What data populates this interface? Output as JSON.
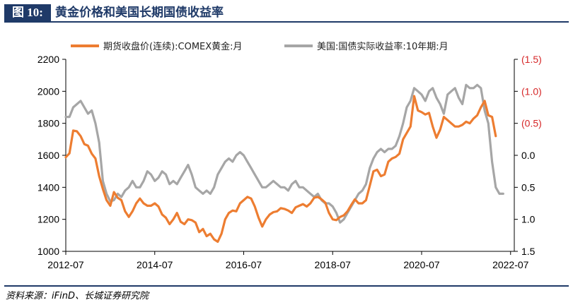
{
  "header": {
    "figure_label": "图 10:",
    "title": "黄金价格和美国长期国债收益率"
  },
  "source_note": "资料来源：iFinD、长城证券研究院",
  "chart_data": {
    "type": "line",
    "title": "",
    "xlabel": "",
    "ylabel_left": "",
    "ylabel_right": "",
    "x_start": "2012-07",
    "x_end": "2022-08",
    "x_tick_labels": [
      "2012-07",
      "2014-07",
      "2016-07",
      "2018-07",
      "2020-07",
      "2022-07"
    ],
    "x_tick_dates": [
      "2012-07",
      "2014-07",
      "2016-07",
      "2018-07",
      "2020-07",
      "2022-07"
    ],
    "y_left": {
      "min": 1000,
      "max": 2200,
      "ticks": [
        1000,
        1200,
        1400,
        1600,
        1800,
        2000,
        2200
      ]
    },
    "y_right": {
      "min": -1.5,
      "max": 1.5,
      "inverted": true,
      "ticks": [
        -1.5,
        -1.0,
        -0.5,
        0.0,
        0.5,
        1.0,
        1.5
      ],
      "tick_labels": [
        "(1.5)",
        "(1.0)",
        "(0.5)",
        "0.0",
        "0.5",
        "1.0",
        "1.5"
      ],
      "negative_label_color": "#d62728"
    },
    "legend_position": "top",
    "grid": false,
    "series": [
      {
        "name": "期货收盘价(连续):COMEX黄金:月",
        "axis": "left",
        "color": "#ed7d31",
        "start": "2012-07",
        "values": [
          1588,
          1613,
          1755,
          1750,
          1720,
          1670,
          1660,
          1610,
          1580,
          1470,
          1390,
          1320,
          1285,
          1370,
          1335,
          1320,
          1250,
          1215,
          1250,
          1300,
          1330,
          1300,
          1285,
          1285,
          1300,
          1280,
          1230,
          1210,
          1170,
          1200,
          1240,
          1185,
          1170,
          1200,
          1195,
          1180,
          1120,
          1140,
          1095,
          1110,
          1075,
          1060,
          1110,
          1200,
          1240,
          1255,
          1250,
          1300,
          1320,
          1340,
          1330,
          1280,
          1210,
          1155,
          1200,
          1230,
          1245,
          1250,
          1270,
          1265,
          1255,
          1240,
          1275,
          1285,
          1295,
          1280,
          1300,
          1335,
          1340,
          1325,
          1305,
          1240,
          1200,
          1195,
          1215,
          1225,
          1250,
          1290,
          1325,
          1300,
          1300,
          1320,
          1410,
          1500,
          1510,
          1470,
          1480,
          1560,
          1580,
          1590,
          1610,
          1700,
          1740,
          1780,
          1970,
          1880,
          1870,
          1855,
          1865,
          1780,
          1710,
          1760,
          1840,
          1820,
          1800,
          1780,
          1780,
          1790,
          1810,
          1800,
          1830,
          1850,
          1900,
          1940,
          1850,
          1840,
          1720
        ]
      },
      {
        "name": "美国:国债实际收益率:10年期:月",
        "axis": "right",
        "color": "#a6a6a6",
        "start": "2012-07",
        "values": [
          -0.6,
          -0.6,
          -0.75,
          -0.8,
          -0.85,
          -0.75,
          -0.65,
          -0.7,
          -0.5,
          -0.2,
          0.4,
          0.6,
          0.72,
          0.7,
          0.6,
          0.65,
          0.55,
          0.5,
          0.4,
          0.5,
          0.5,
          0.4,
          0.25,
          0.3,
          0.4,
          0.35,
          0.25,
          0.3,
          0.45,
          0.4,
          0.45,
          0.35,
          0.25,
          0.15,
          0.3,
          0.5,
          0.55,
          0.6,
          0.55,
          0.6,
          0.5,
          0.3,
          0.2,
          0.1,
          0.05,
          0.1,
          0.0,
          -0.05,
          0.0,
          0.1,
          0.2,
          0.3,
          0.4,
          0.5,
          0.5,
          0.45,
          0.4,
          0.45,
          0.5,
          0.5,
          0.55,
          0.45,
          0.4,
          0.5,
          0.5,
          0.55,
          0.6,
          0.65,
          0.6,
          0.7,
          0.75,
          0.75,
          0.8,
          0.9,
          1.05,
          1.0,
          0.9,
          0.8,
          0.7,
          0.6,
          0.55,
          0.45,
          0.2,
          0.05,
          -0.05,
          -0.1,
          -0.05,
          -0.1,
          -0.1,
          -0.15,
          -0.3,
          -0.5,
          -0.75,
          -0.85,
          -1.05,
          -1.0,
          -0.95,
          -0.85,
          -1.0,
          -1.05,
          -0.9,
          -0.8,
          -0.65,
          -0.95,
          -1.0,
          -1.05,
          -0.9,
          -0.8,
          -1.1,
          -1.05,
          -1.05,
          -1.1,
          -1.05,
          -0.7,
          -0.5,
          0.1,
          0.5,
          0.6,
          0.6
        ]
      }
    ]
  }
}
